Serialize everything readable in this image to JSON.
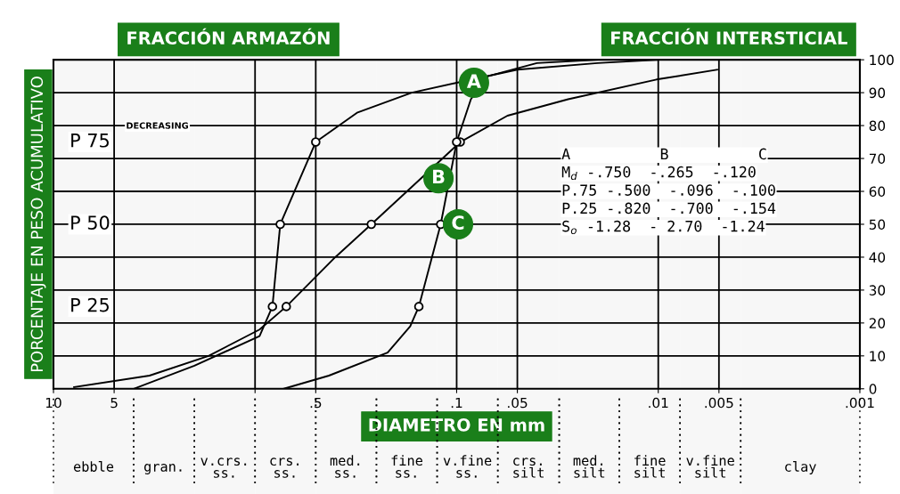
{
  "chart_data": {
    "type": "line",
    "xlabel": "DIAMETRO EN mm",
    "ylabel": "PORCENTAJE EN PESO ACUMULATIVO",
    "log": "x",
    "xlim": [
      10,
      0.001
    ],
    "ylim": [
      0,
      100
    ],
    "xticks": [
      10,
      {
        "value": 5,
        "label": "5"
      },
      {
        "value": 1,
        "label": null
      },
      {
        "value": 0.5,
        "label": ".5"
      },
      {
        "value": 0.1,
        "label": ".1"
      },
      {
        "value": 0.05,
        "label": ".05"
      },
      {
        "value": 0.01,
        "label": ".01"
      },
      {
        "value": 0.005,
        "label": ".005"
      },
      {
        "value": 0.001,
        "label": ".001"
      }
    ],
    "yticks": [
      0,
      10,
      20,
      30,
      40,
      50,
      60,
      70,
      80,
      90,
      100
    ],
    "grid": true,
    "line_style": "solid",
    "marker": "none",
    "series": [
      {
        "name": "A",
        "color": "#000000",
        "x": [
          4,
          2,
          0.95,
          0.82,
          0.75,
          0.5,
          0.31,
          0.167,
          0.1,
          0.05,
          0.02,
          0.01
        ],
        "values": [
          0,
          7,
          16,
          25,
          50,
          75,
          84,
          90,
          93,
          97,
          99,
          100
        ]
      },
      {
        "name": "B",
        "color": "#000000",
        "x": [
          7.9,
          3.34,
          1.7,
          0.95,
          0.7,
          0.4,
          0.265,
          0.15,
          0.096,
          0.056,
          0.028,
          0.0102,
          0.0051
        ],
        "values": [
          0.5,
          4,
          10,
          18,
          25,
          40,
          50,
          64,
          75,
          83,
          88,
          94,
          97
        ]
      },
      {
        "name": "C",
        "color": "#000000",
        "x": [
          0.72,
          0.43,
          0.22,
          0.17,
          0.154,
          0.12,
          0.1,
          0.085,
          0.07,
          0.04,
          0.02
        ],
        "values": [
          0,
          4,
          11,
          19,
          25,
          50,
          75,
          88,
          95,
          99,
          100
        ]
      },
      {
        "type": "scatter",
        "marker": "circle",
        "color": "#000000",
        "x": [
          0.82,
          0.75,
          0.5,
          0.7,
          0.265,
          0.096,
          0.154,
          0.12,
          0.1
        ],
        "values": [
          25,
          50,
          75,
          25,
          50,
          75,
          25,
          50,
          75
        ]
      }
    ],
    "bands": [
      {
        "axis": "x",
        "from": 10,
        "to": 4,
        "label": "ebble"
      },
      {
        "axis": "x",
        "from": 4,
        "to": 2,
        "label": "gran."
      },
      {
        "axis": "x",
        "from": 2,
        "to": 1,
        "label": "v.crs.\nss."
      },
      {
        "axis": "x",
        "from": 1,
        "to": 0.5,
        "label": "crs.\nss."
      },
      {
        "axis": "x",
        "from": 0.5,
        "to": 0.25,
        "label": "med.\nss."
      },
      {
        "axis": "x",
        "from": 0.25,
        "to": 0.125,
        "label": "fine\nss."
      },
      {
        "axis": "x",
        "from": 0.125,
        "to": 0.0625,
        "label": "v.fine\nss."
      },
      {
        "axis": "x",
        "from": 0.0625,
        "to": 0.031,
        "label": "crs.\nsilt"
      },
      {
        "axis": "x",
        "from": 0.031,
        "to": 0.0156,
        "label": "med.\nsilt"
      },
      {
        "axis": "x",
        "from": 0.0156,
        "to": 0.0078,
        "label": "fine\nsilt"
      },
      {
        "axis": "x",
        "from": 0.0078,
        "to": 0.0039,
        "label": "v.fine\nsilt"
      },
      {
        "axis": "x",
        "from": 0.0039,
        "to": 0.001,
        "label": "clay"
      }
    ],
    "annotations": [
      "FRACCIÓN ARMAZÓN",
      "FRACCIÓN INTERSTICIAL",
      "P 75",
      "DECREASING",
      "P 50",
      "P 25",
      "A          B          C",
      "M$_{d}$ -.750  -.265  -.120",
      "P.75 -.500  -.096  -.100",
      "P.25 -.820  -.700  -.154",
      "S$_{o}$ -1.28  - 2.70  -1.24"
    ]
  }
}
